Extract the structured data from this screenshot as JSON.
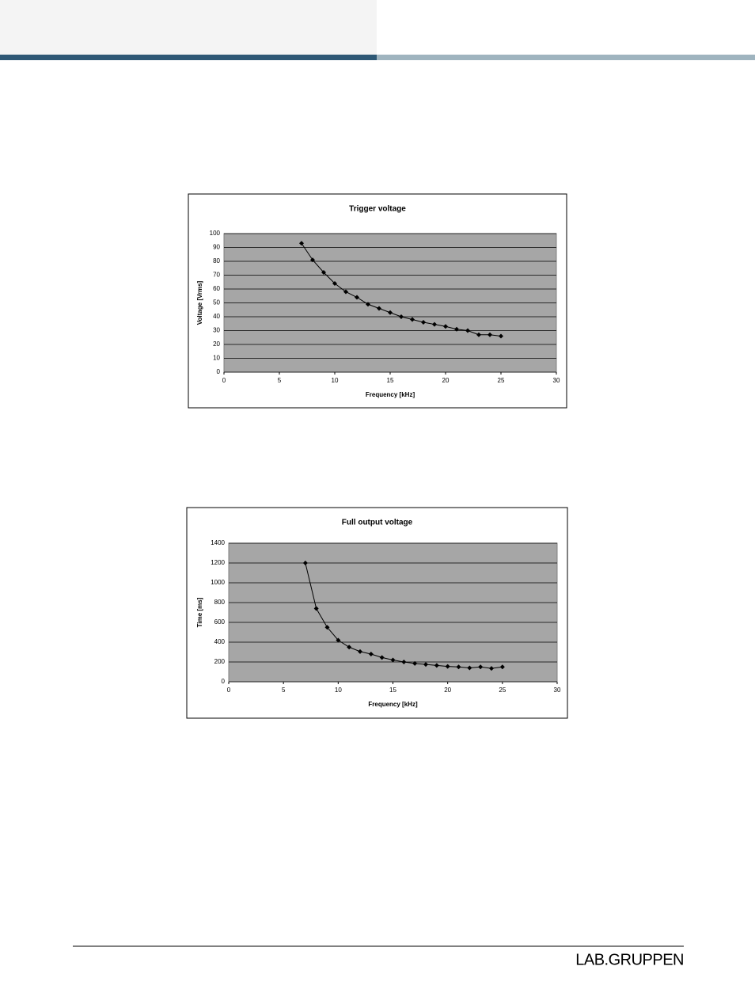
{
  "chart_data": [
    {
      "type": "line",
      "title": "Trigger voltage",
      "x_label": "Frequency [kHz]",
      "y_label": "Voltage [Vrms]",
      "x": [
        7,
        8,
        9,
        10,
        11,
        12,
        13,
        14,
        15,
        16,
        17,
        18,
        19,
        20,
        21,
        22,
        23,
        24,
        25
      ],
      "values": [
        93,
        81,
        72,
        64,
        58,
        54,
        49,
        46,
        43,
        40,
        38,
        36,
        34.5,
        33,
        31,
        30,
        27,
        27,
        26
      ],
      "color": "#000000",
      "plot_color": "#a6a6a6",
      "grid": true,
      "xlim": [
        0,
        30
      ],
      "xticks": [
        0,
        5,
        10,
        15,
        20,
        25,
        30
      ],
      "ylim": [
        0,
        100
      ],
      "yticks": [
        0,
        10,
        20,
        30,
        40,
        50,
        60,
        70,
        80,
        90,
        100
      ]
    },
    {
      "type": "line",
      "title": "Full output voltage",
      "x_label": "Frequency [kHz]",
      "y_label": "Time [ms]",
      "x": [
        7,
        8,
        9,
        10,
        11,
        12,
        13,
        14,
        15,
        16,
        17,
        18,
        19,
        20,
        21,
        22,
        23,
        24,
        25
      ],
      "values": [
        1200,
        740,
        550,
        420,
        350,
        305,
        280,
        245,
        220,
        200,
        185,
        175,
        165,
        155,
        150,
        140,
        150,
        135,
        150
      ],
      "color": "#000000",
      "plot_color": "#a6a6a6",
      "grid": true,
      "xlim": [
        0,
        30
      ],
      "xticks": [
        0,
        5,
        10,
        15,
        20,
        25,
        30
      ],
      "ylim": [
        0,
        1400
      ],
      "yticks": [
        0,
        200,
        400,
        600,
        800,
        1000,
        1200,
        1400
      ]
    }
  ],
  "footer": {
    "logo": "LAB.GRUPPEN"
  }
}
